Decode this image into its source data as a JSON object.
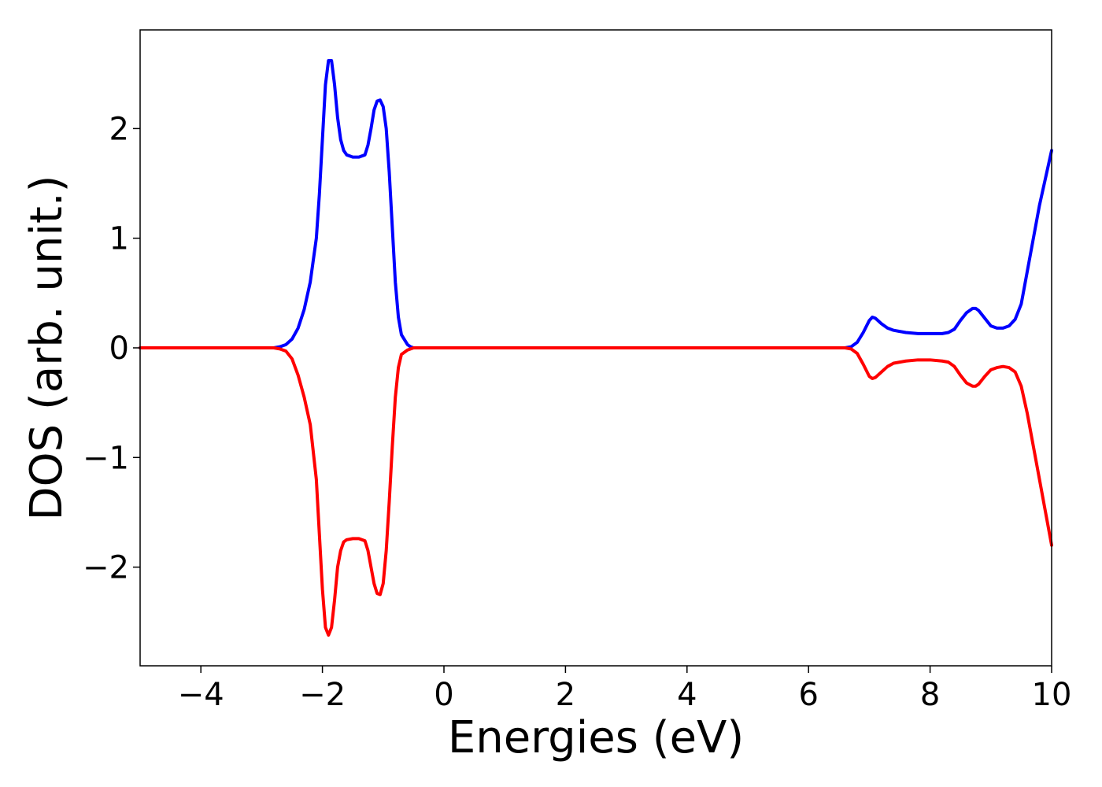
{
  "chart_data": {
    "type": "line",
    "title": "",
    "xlabel": "Energies (eV)",
    "ylabel": "DOS (arb. unit.)",
    "xlim": [
      -5,
      10
    ],
    "ylim": [
      -2.9,
      2.9
    ],
    "xticks": [
      -4,
      -2,
      0,
      2,
      4,
      6,
      8,
      10
    ],
    "yticks": [
      -2,
      -1,
      0,
      1,
      2
    ],
    "xtick_labels": [
      "−4",
      "−2",
      "0",
      "2",
      "4",
      "6",
      "8",
      "10"
    ],
    "ytick_labels": [
      "−2",
      "−1",
      "0",
      "1",
      "2"
    ],
    "grid": false,
    "legend": "none",
    "series": [
      {
        "color": "#0000ff",
        "x": [
          -5.0,
          -3.0,
          -2.8,
          -2.7,
          -2.6,
          -2.5,
          -2.4,
          -2.3,
          -2.2,
          -2.1,
          -2.05,
          -2.0,
          -1.95,
          -1.9,
          -1.85,
          -1.8,
          -1.75,
          -1.7,
          -1.65,
          -1.6,
          -1.5,
          -1.4,
          -1.3,
          -1.25,
          -1.2,
          -1.15,
          -1.1,
          -1.05,
          -1.0,
          -0.95,
          -0.9,
          -0.85,
          -0.8,
          -0.75,
          -0.7,
          -0.6,
          -0.55,
          -0.5,
          -0.45,
          -0.4,
          0.0,
          2.0,
          4.0,
          6.0,
          6.6,
          6.7,
          6.8,
          6.9,
          7.0,
          7.05,
          7.1,
          7.2,
          7.3,
          7.4,
          7.5,
          7.6,
          7.8,
          8.0,
          8.2,
          8.3,
          8.4,
          8.5,
          8.6,
          8.7,
          8.75,
          8.8,
          8.9,
          9.0,
          9.1,
          9.2,
          9.3,
          9.4,
          9.5,
          9.6,
          9.7,
          9.8,
          9.9,
          10.0
        ],
        "values": [
          0.0,
          0.0,
          0.0,
          0.01,
          0.03,
          0.08,
          0.18,
          0.35,
          0.6,
          1.0,
          1.4,
          1.9,
          2.4,
          2.62,
          2.62,
          2.4,
          2.1,
          1.9,
          1.8,
          1.76,
          1.74,
          1.74,
          1.76,
          1.85,
          2.0,
          2.17,
          2.25,
          2.26,
          2.2,
          2.0,
          1.6,
          1.1,
          0.6,
          0.28,
          0.12,
          0.03,
          0.01,
          0.0,
          0.0,
          0.0,
          0.0,
          0.0,
          0.0,
          0.0,
          0.0,
          0.01,
          0.05,
          0.14,
          0.25,
          0.28,
          0.27,
          0.22,
          0.18,
          0.16,
          0.15,
          0.14,
          0.13,
          0.13,
          0.13,
          0.14,
          0.17,
          0.25,
          0.32,
          0.36,
          0.36,
          0.34,
          0.27,
          0.2,
          0.18,
          0.18,
          0.2,
          0.26,
          0.4,
          0.7,
          1.0,
          1.3,
          1.55,
          1.8
        ]
      },
      {
        "color": "#ff0000",
        "x": [
          -5.0,
          -3.0,
          -2.8,
          -2.7,
          -2.6,
          -2.5,
          -2.4,
          -2.3,
          -2.2,
          -2.1,
          -2.05,
          -2.0,
          -1.95,
          -1.9,
          -1.85,
          -1.8,
          -1.75,
          -1.7,
          -1.65,
          -1.6,
          -1.5,
          -1.4,
          -1.3,
          -1.25,
          -1.2,
          -1.15,
          -1.1,
          -1.05,
          -1.0,
          -0.95,
          -0.9,
          -0.85,
          -0.8,
          -0.75,
          -0.7,
          -0.6,
          -0.55,
          -0.5,
          -0.45,
          -0.4,
          0.0,
          2.0,
          4.0,
          6.0,
          6.6,
          6.7,
          6.8,
          6.9,
          7.0,
          7.05,
          7.1,
          7.2,
          7.3,
          7.4,
          7.5,
          7.6,
          7.8,
          8.0,
          8.2,
          8.3,
          8.4,
          8.5,
          8.6,
          8.7,
          8.75,
          8.8,
          8.9,
          9.0,
          9.1,
          9.2,
          9.3,
          9.4,
          9.5,
          9.6,
          9.7,
          9.8,
          9.9,
          10.0
        ],
        "values": [
          0.0,
          0.0,
          0.0,
          -0.01,
          -0.03,
          -0.1,
          -0.25,
          -0.45,
          -0.7,
          -1.2,
          -1.7,
          -2.2,
          -2.55,
          -2.62,
          -2.55,
          -2.3,
          -2.0,
          -1.85,
          -1.77,
          -1.75,
          -1.74,
          -1.74,
          -1.76,
          -1.85,
          -2.0,
          -2.15,
          -2.24,
          -2.25,
          -2.15,
          -1.85,
          -1.4,
          -0.9,
          -0.45,
          -0.18,
          -0.06,
          -0.02,
          -0.01,
          0.0,
          0.0,
          0.0,
          0.0,
          0.0,
          0.0,
          0.0,
          0.0,
          -0.01,
          -0.05,
          -0.15,
          -0.26,
          -0.28,
          -0.27,
          -0.22,
          -0.17,
          -0.14,
          -0.13,
          -0.12,
          -0.11,
          -0.11,
          -0.12,
          -0.13,
          -0.17,
          -0.25,
          -0.32,
          -0.35,
          -0.35,
          -0.33,
          -0.26,
          -0.2,
          -0.18,
          -0.17,
          -0.18,
          -0.22,
          -0.35,
          -0.6,
          -0.9,
          -1.2,
          -1.5,
          -1.8
        ]
      }
    ]
  }
}
